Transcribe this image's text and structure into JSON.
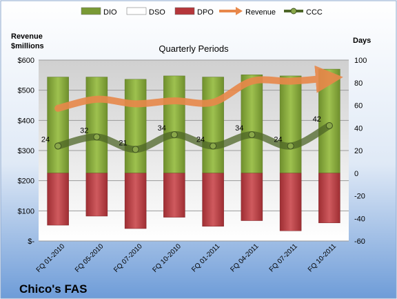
{
  "company": "Chico's FAS",
  "chart_data": {
    "type": "bar",
    "title": "Quarterly Periods",
    "left_axis_title_line1": "Revenue",
    "left_axis_title_line2": "$millions",
    "right_axis_title": "Days",
    "categories": [
      "FQ 01-2010",
      "FQ 05-2010",
      "FQ 07-2010",
      "FQ 10-2010",
      "FQ 01-2011",
      "FQ 04-2011",
      "FQ 07-2011",
      "FQ 10-2011"
    ],
    "left_axis": {
      "ylim": [
        0,
        600
      ],
      "ticks": [
        0,
        100,
        200,
        300,
        400,
        500,
        600
      ],
      "tick_labels": [
        "$-",
        "$100",
        "$200",
        "$300",
        "$400",
        "$500",
        "$600"
      ]
    },
    "right_axis": {
      "ylim": [
        -60,
        100
      ],
      "ticks": [
        -60,
        -40,
        -20,
        0,
        20,
        40,
        60,
        80,
        100
      ],
      "tick_labels": [
        "-60",
        "-40",
        "-20",
        "0",
        "20",
        "40",
        "60",
        "80",
        "100"
      ]
    },
    "legend": {
      "position": "top",
      "items": [
        {
          "name": "DIO",
          "kind": "box",
          "color": "#7a9a35"
        },
        {
          "name": "DSO",
          "kind": "box",
          "color": "#ffffff"
        },
        {
          "name": "DPO",
          "kind": "box",
          "color": "#b5363a"
        },
        {
          "name": "Revenue",
          "kind": "arrow",
          "color": "#e8884a"
        },
        {
          "name": "CCC",
          "kind": "line-marker",
          "color": "#4d6627"
        }
      ]
    },
    "series": [
      {
        "name": "DIO",
        "axis": "right",
        "values": [
          85,
          85,
          83,
          86,
          85,
          87,
          86,
          92
        ],
        "color": "#7a9a35"
      },
      {
        "name": "DSO",
        "axis": "right",
        "values": [
          0,
          0,
          0,
          0,
          0,
          0,
          0,
          0
        ],
        "color": "#ffffff"
      },
      {
        "name": "DPO",
        "axis": "right",
        "values": [
          -46,
          -38,
          -49,
          -39,
          -47,
          -42,
          -51,
          -44
        ],
        "color": "#b5363a"
      },
      {
        "name": "Revenue",
        "axis": "left",
        "values": [
          440,
          470,
          455,
          465,
          460,
          530,
          530,
          540
        ],
        "color": "#e8884a"
      },
      {
        "name": "CCC",
        "axis": "right",
        "values": [
          24,
          32,
          21,
          34,
          24,
          34,
          24,
          42
        ],
        "labels": [
          "24",
          "32",
          "21",
          "34",
          "24",
          "34",
          "24",
          "42"
        ],
        "color": "#4d6627"
      }
    ]
  }
}
